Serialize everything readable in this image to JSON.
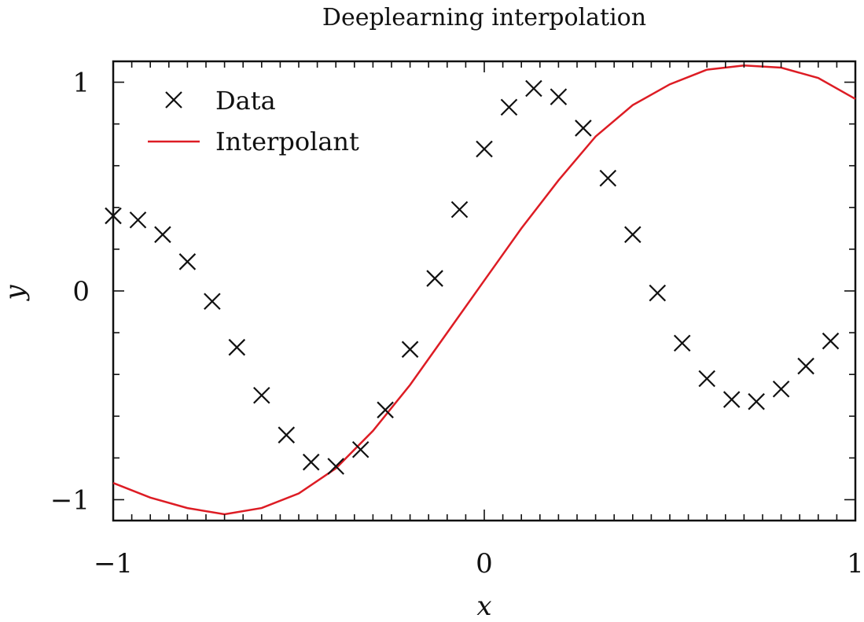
{
  "chart_data": {
    "type": "line",
    "title": "Deeplearning interpolation",
    "xlabel": "x",
    "ylabel": "y",
    "xlim": [
      -1,
      1
    ],
    "ylim": [
      -1.1,
      1.1
    ],
    "xticks": [
      {
        "value": -1,
        "label": "−1"
      },
      {
        "value": 0,
        "label": "0"
      },
      {
        "value": 1,
        "label": "1"
      }
    ],
    "yticks": [
      {
        "value": -1,
        "label": "−1"
      },
      {
        "value": 0,
        "label": "0"
      },
      {
        "value": 1,
        "label": "1"
      }
    ],
    "legend_position": "top-left",
    "grid": false,
    "series": [
      {
        "name": "Data",
        "kind": "scatter",
        "marker": "x",
        "color": "#111111",
        "points": [
          [
            -1.0,
            0.36
          ],
          [
            -0.9333,
            0.34
          ],
          [
            -0.8667,
            0.27
          ],
          [
            -0.8,
            0.14
          ],
          [
            -0.7333,
            -0.05
          ],
          [
            -0.6667,
            -0.27
          ],
          [
            -0.6,
            -0.5
          ],
          [
            -0.5333,
            -0.69
          ],
          [
            -0.4667,
            -0.82
          ],
          [
            -0.4,
            -0.84
          ],
          [
            -0.3333,
            -0.76
          ],
          [
            -0.2667,
            -0.57
          ],
          [
            -0.2,
            -0.28
          ],
          [
            -0.1333,
            0.06
          ],
          [
            -0.0667,
            0.39
          ],
          [
            0.0,
            0.68
          ],
          [
            0.0667,
            0.88
          ],
          [
            0.1333,
            0.97
          ],
          [
            0.2,
            0.93
          ],
          [
            0.2667,
            0.78
          ],
          [
            0.3333,
            0.54
          ],
          [
            0.4,
            0.27
          ],
          [
            0.4667,
            -0.01
          ],
          [
            0.5333,
            -0.25
          ],
          [
            0.6,
            -0.42
          ],
          [
            0.6667,
            -0.52
          ],
          [
            0.7333,
            -0.53
          ],
          [
            0.8,
            -0.47
          ],
          [
            0.8667,
            -0.36
          ],
          [
            0.9333,
            -0.24
          ]
        ]
      },
      {
        "name": "Interpolant",
        "kind": "line",
        "color": "#dd1c24",
        "points": [
          [
            -1.0,
            -0.92
          ],
          [
            -0.9,
            -0.99
          ],
          [
            -0.8,
            -1.04
          ],
          [
            -0.7,
            -1.07
          ],
          [
            -0.6,
            -1.04
          ],
          [
            -0.5,
            -0.97
          ],
          [
            -0.4,
            -0.85
          ],
          [
            -0.3,
            -0.67
          ],
          [
            -0.2,
            -0.45
          ],
          [
            -0.1,
            -0.2
          ],
          [
            0.0,
            0.05
          ],
          [
            0.1,
            0.3
          ],
          [
            0.2,
            0.53
          ],
          [
            0.3,
            0.74
          ],
          [
            0.4,
            0.89
          ],
          [
            0.5,
            0.99
          ],
          [
            0.6,
            1.06
          ],
          [
            0.7,
            1.08
          ],
          [
            0.8,
            1.07
          ],
          [
            0.9,
            1.02
          ],
          [
            1.0,
            0.92
          ]
        ]
      }
    ]
  }
}
